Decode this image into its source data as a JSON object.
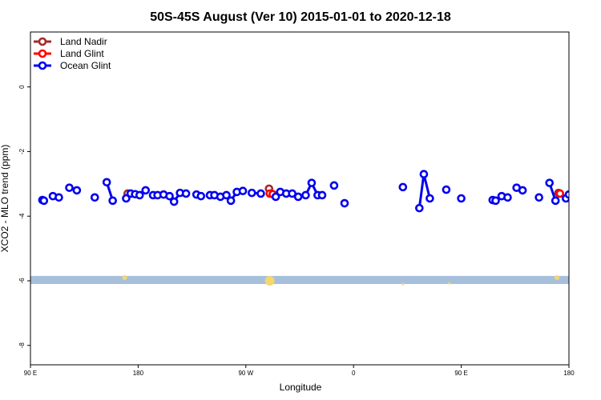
{
  "chart_data": {
    "type": "line",
    "title": "50S-45S August (Ver 10)   2015-01-01 to 2020-12-18",
    "xlabel": "Longitude",
    "ylabel": "XCO2 - MLO trend (ppm)",
    "xlim": [
      90,
      450
    ],
    "ylim": [
      -8.6,
      1.7
    ],
    "x_ticks": [
      {
        "value": 90,
        "label": "90 E"
      },
      {
        "value": 162,
        "label": "180"
      },
      {
        "value": 234,
        "label": "90 W"
      },
      {
        "value": 306,
        "label": "0"
      },
      {
        "value": 378,
        "label": "90 E"
      },
      {
        "value": 450,
        "label": "180"
      }
    ],
    "y_ticks": [
      {
        "value": 0,
        "label": "0"
      },
      {
        "value": -2,
        "label": "-2"
      },
      {
        "value": -4,
        "label": "-4"
      },
      {
        "value": -6,
        "label": "-6"
      },
      {
        "value": -8,
        "label": "-8"
      }
    ],
    "band": {
      "y_from": -6.1,
      "y_to": -5.85,
      "color": "#a8bfdc"
    },
    "band_markers": {
      "color": "#f5d76e",
      "points": [
        [
          153,
          -5.9,
          3
        ],
        [
          250,
          -6.0,
          6
        ],
        [
          370,
          -6.08,
          1.5
        ],
        [
          339,
          -6.1,
          1.5
        ],
        [
          442,
          -5.9,
          3
        ]
      ]
    },
    "legend": {
      "position": "top-left",
      "entries": [
        {
          "label": "Land Nadir",
          "color": "#a52a2a"
        },
        {
          "label": "Land Glint",
          "color": "#ff0000"
        },
        {
          "label": "Ocean Glint",
          "color": "#0000ee"
        }
      ]
    },
    "series": [
      {
        "name": "Land Nadir",
        "color": "#a52a2a",
        "segments": [
          [
            [
              155,
              -3.3
            ]
          ],
          [
            [
              249.5,
              -3.15
            ],
            [
              251,
              -3.3
            ]
          ],
          [
            [
              443,
              -3.28
            ]
          ]
        ]
      },
      {
        "name": "Land Glint",
        "color": "#ff0000",
        "segments": [
          [
            [
              250,
              -3.3
            ],
            [
              252,
              -3.32
            ]
          ],
          [
            [
              444,
              -3.3
            ]
          ]
        ]
      },
      {
        "name": "Ocean Glint",
        "color": "#0000ee",
        "segments": [
          [
            [
              98,
              -3.5
            ],
            [
              99,
              -3.52
            ]
          ],
          [
            [
              105,
              -3.38
            ],
            [
              109,
              -3.42
            ]
          ],
          [
            [
              116,
              -3.12
            ],
            [
              121,
              -3.2
            ]
          ],
          [
            [
              133,
              -3.42
            ]
          ],
          [
            [
              141,
              -2.95
            ],
            [
              145,
              -3.52
            ]
          ],
          [
            [
              154,
              -3.45
            ],
            [
              157,
              -3.3
            ],
            [
              160,
              -3.32
            ],
            [
              163,
              -3.35
            ],
            [
              167,
              -3.2
            ]
          ],
          [
            [
              172,
              -3.35
            ],
            [
              175,
              -3.35
            ],
            [
              179,
              -3.33
            ],
            [
              183,
              -3.38
            ],
            [
              186,
              -3.55
            ],
            [
              190,
              -3.28
            ],
            [
              194,
              -3.3
            ]
          ],
          [
            [
              201,
              -3.33
            ],
            [
              204,
              -3.38
            ]
          ],
          [
            [
              210,
              -3.35
            ],
            [
              213,
              -3.35
            ],
            [
              217,
              -3.4
            ],
            [
              221,
              -3.35
            ],
            [
              224,
              -3.52
            ],
            [
              228,
              -3.25
            ],
            [
              232,
              -3.22
            ]
          ],
          [
            [
              238,
              -3.28
            ],
            [
              244,
              -3.3
            ]
          ],
          [
            [
              254,
              -3.4
            ],
            [
              257,
              -3.25
            ],
            [
              261,
              -3.3
            ],
            [
              265,
              -3.3
            ],
            [
              269,
              -3.4
            ],
            [
              274,
              -3.35
            ],
            [
              278,
              -2.97
            ],
            [
              282,
              -3.35
            ],
            [
              285,
              -3.35
            ]
          ],
          [
            [
              293,
              -3.05
            ]
          ],
          [
            [
              300,
              -3.6
            ]
          ],
          [
            [
              339,
              -3.1
            ]
          ],
          [
            [
              350,
              -3.75
            ],
            [
              353,
              -2.7
            ],
            [
              357,
              -3.45
            ]
          ],
          [
            [
              368,
              -3.18
            ]
          ],
          [
            [
              378,
              -3.45
            ]
          ],
          [
            [
              399,
              -3.5
            ],
            [
              401,
              -3.52
            ]
          ],
          [
            [
              405,
              -3.38
            ],
            [
              409,
              -3.42
            ]
          ],
          [
            [
              415,
              -3.12
            ],
            [
              419,
              -3.2
            ]
          ],
          [
            [
              430,
              -3.42
            ]
          ],
          [
            [
              437,
              -2.97
            ],
            [
              441,
              -3.52
            ]
          ],
          [
            [
              448,
              -3.45
            ],
            [
              450,
              -3.33
            ],
            [
              454,
              -3.35
            ],
            [
              459,
              -3.22
            ]
          ]
        ]
      }
    ]
  }
}
